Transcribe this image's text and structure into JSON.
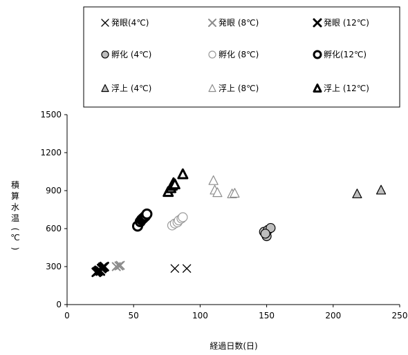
{
  "chart_data": {
    "type": "scatter",
    "xlabel": "経過日数(日)",
    "ylabel": "積算水温(℃)",
    "xlim": [
      0,
      250
    ],
    "ylim": [
      0,
      1500
    ],
    "xticks": [
      "0",
      "50",
      "100",
      "150",
      "200",
      "250"
    ],
    "yticks": [
      "0",
      "300",
      "600",
      "900",
      "1200",
      "1500"
    ],
    "grid": false,
    "legend_position": "top",
    "series": [
      {
        "name": "発眼(4℃)",
        "marker": "x",
        "color": "#000000",
        "weight": "thin",
        "points": [
          [
            81,
            285
          ],
          [
            90,
            285
          ]
        ]
      },
      {
        "name": "発眼 (8℃)",
        "marker": "x",
        "color": "#8c8c8c",
        "weight": "thick",
        "points": [
          [
            37,
            300
          ],
          [
            40,
            310
          ],
          [
            39,
            305
          ]
        ]
      },
      {
        "name": "発眼 (12℃)",
        "marker": "x",
        "color": "#000000",
        "weight": "bold",
        "points": [
          [
            22,
            255
          ],
          [
            24,
            270
          ],
          [
            26,
            285
          ],
          [
            27,
            295
          ],
          [
            25,
            265
          ],
          [
            28,
            300
          ],
          [
            23,
            262
          ]
        ]
      },
      {
        "name": "孵化 (4℃)",
        "marker": "circle",
        "color": "#000000",
        "fill": "#bdbdbd",
        "points": [
          [
            148,
            575
          ],
          [
            150,
            540
          ],
          [
            151,
            590
          ],
          [
            153,
            605
          ],
          [
            149,
            560
          ]
        ]
      },
      {
        "name": "孵化 (8℃)",
        "marker": "circle",
        "color": "#9a9a9a",
        "fill": "#ffffff",
        "points": [
          [
            79,
            625
          ],
          [
            81,
            640
          ],
          [
            83,
            650
          ],
          [
            84,
            665
          ],
          [
            86,
            680
          ],
          [
            87,
            690
          ]
        ]
      },
      {
        "name": "孵化(12℃)",
        "marker": "circle",
        "color": "#000000",
        "fill": "#ffffff",
        "weight": "bold",
        "points": [
          [
            53,
            620
          ],
          [
            55,
            655
          ],
          [
            56,
            670
          ],
          [
            57,
            680
          ],
          [
            58,
            690
          ],
          [
            59,
            700
          ],
          [
            60,
            715
          ]
        ]
      },
      {
        "name": "浮上 (4℃)",
        "marker": "triangle",
        "color": "#000000",
        "fill": "#bdbdbd",
        "points": [
          [
            218,
            875
          ],
          [
            236,
            905
          ]
        ]
      },
      {
        "name": "浮上  (8℃)",
        "marker": "triangle",
        "color": "#8c8c8c",
        "fill": "#ffffff",
        "points": [
          [
            110,
            980
          ],
          [
            111,
            905
          ],
          [
            113,
            885
          ],
          [
            124,
            875
          ],
          [
            126,
            880
          ]
        ]
      },
      {
        "name": "浮上 (12℃)",
        "marker": "triangle",
        "color": "#000000",
        "fill": "#ffffff",
        "weight": "bold",
        "points": [
          [
            76,
            890
          ],
          [
            78,
            920
          ],
          [
            79,
            940
          ],
          [
            80,
            960
          ],
          [
            81,
            950
          ],
          [
            87,
            1030
          ]
        ]
      }
    ]
  }
}
